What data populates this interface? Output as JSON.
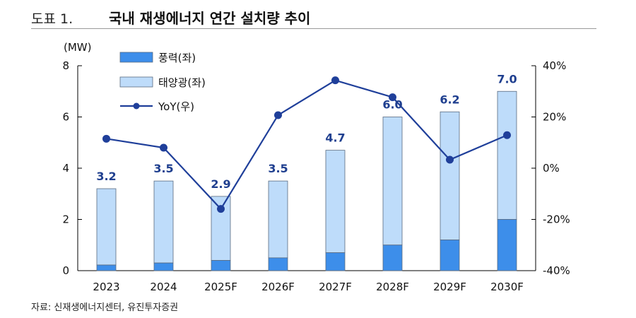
{
  "header": {
    "figure_label": "도표 1.",
    "title": "국내 재생에너지 연간 설치량 추이"
  },
  "source": "자료: 신재생에너지센터, 유진투자증권",
  "colors": {
    "wind": "#3d8eea",
    "solar": "#bedcfa",
    "bar_border": "#5a6b80",
    "yoy_line": "#1f3f9a",
    "label": "#1f3f8f"
  },
  "chart_data": {
    "type": "bar",
    "stacked": true,
    "left_unit": "(MW)",
    "categories": [
      "2023",
      "2024",
      "2025F",
      "2026F",
      "2027F",
      "2028F",
      "2029F",
      "2030F"
    ],
    "series": [
      {
        "name": "풍력(좌)",
        "axis": "left",
        "values": [
          0.22,
          0.3,
          0.4,
          0.5,
          0.7,
          1.0,
          1.2,
          2.0
        ]
      },
      {
        "name": "태양광(좌)",
        "axis": "left",
        "values": [
          2.98,
          3.2,
          2.5,
          3.0,
          4.0,
          5.0,
          5.0,
          5.0
        ]
      },
      {
        "name": "YoY(우)",
        "axis": "right",
        "type": "line",
        "values": [
          11.5,
          8.0,
          -15.9,
          20.7,
          34.3,
          27.7,
          3.3,
          12.9
        ]
      }
    ],
    "total_labels": [
      "3.2",
      "3.5",
      "2.9",
      "3.5",
      "4.7",
      "6.0",
      "6.2",
      "7.0"
    ],
    "left_axis": {
      "ylim": [
        0,
        8
      ],
      "ticks": [
        "0",
        "2",
        "4",
        "6",
        "8"
      ]
    },
    "right_axis": {
      "ylim": [
        -40,
        40
      ],
      "ticks": [
        "-40%",
        "-20%",
        "0%",
        "20%",
        "40%"
      ]
    },
    "legend_position": "top-left"
  }
}
